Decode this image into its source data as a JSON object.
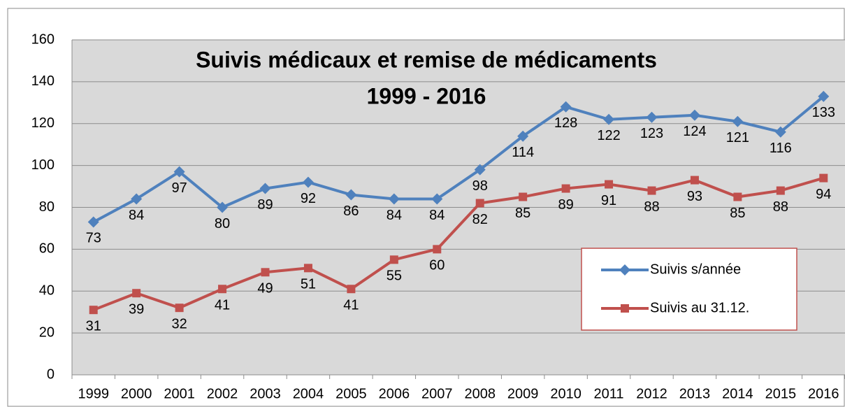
{
  "chart_data": {
    "type": "line",
    "title": "Suivis médicaux et remise de médicaments",
    "subtitle": "1999 - 2016",
    "categories": [
      "1999",
      "2000",
      "2001",
      "2002",
      "2003",
      "2004",
      "2005",
      "2006",
      "2007",
      "2008",
      "2009",
      "2010",
      "2011",
      "2012",
      "2013",
      "2014",
      "2015",
      "2016"
    ],
    "series": [
      {
        "name": "Suivis s/année",
        "color": "#4f81bd",
        "marker": "diamond",
        "values": [
          73,
          84,
          97,
          80,
          89,
          92,
          86,
          84,
          84,
          98,
          114,
          128,
          122,
          123,
          124,
          121,
          116,
          133
        ]
      },
      {
        "name": "Suivis au 31.12.",
        "color": "#c0504d",
        "marker": "square",
        "values": [
          31,
          39,
          32,
          41,
          49,
          51,
          41,
          55,
          60,
          82,
          85,
          89,
          91,
          88,
          93,
          85,
          88,
          94
        ]
      }
    ],
    "ylim": [
      0,
      160
    ],
    "yticks": [
      0,
      20,
      40,
      60,
      80,
      100,
      120,
      140,
      160
    ],
    "grid": true
  }
}
